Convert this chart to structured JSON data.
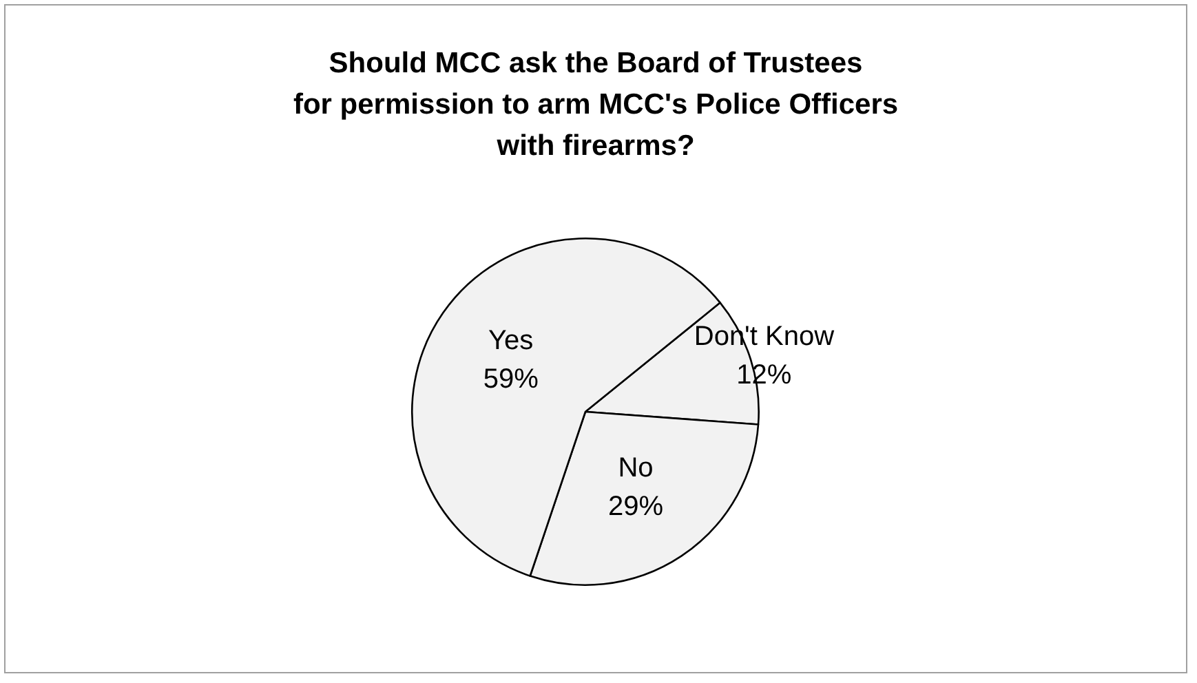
{
  "chart_data": {
    "type": "pie",
    "title": "Should MCC ask the Board of Trustees\nfor permission to arm MCC's Police Officers\nwith firearms?",
    "categories": [
      "Don't Know",
      "No",
      "Yes"
    ],
    "values": [
      12,
      29,
      59
    ],
    "colors": [
      "#f2f2f2",
      "#f2f2f2",
      "#f2f2f2"
    ],
    "value_labels": [
      "12%",
      "29%",
      "59%"
    ]
  }
}
